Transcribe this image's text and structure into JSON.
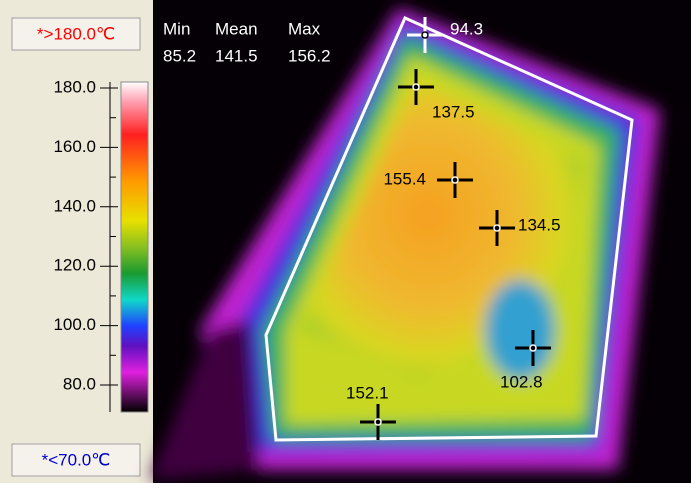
{
  "scale": {
    "max_label": "*>180.0℃",
    "min_label": "*<70.0℃",
    "ticks": [
      "180.0",
      "160.0",
      "140.0",
      "120.0",
      "100.0",
      "80.0"
    ]
  },
  "stats": {
    "headers": [
      "Min",
      "Mean",
      "Max"
    ],
    "values": [
      "85.2",
      "141.5",
      "156.2"
    ]
  },
  "markers": [
    "94.3",
    "137.5",
    "155.4",
    "134.5",
    "102.8",
    "152.1"
  ]
}
